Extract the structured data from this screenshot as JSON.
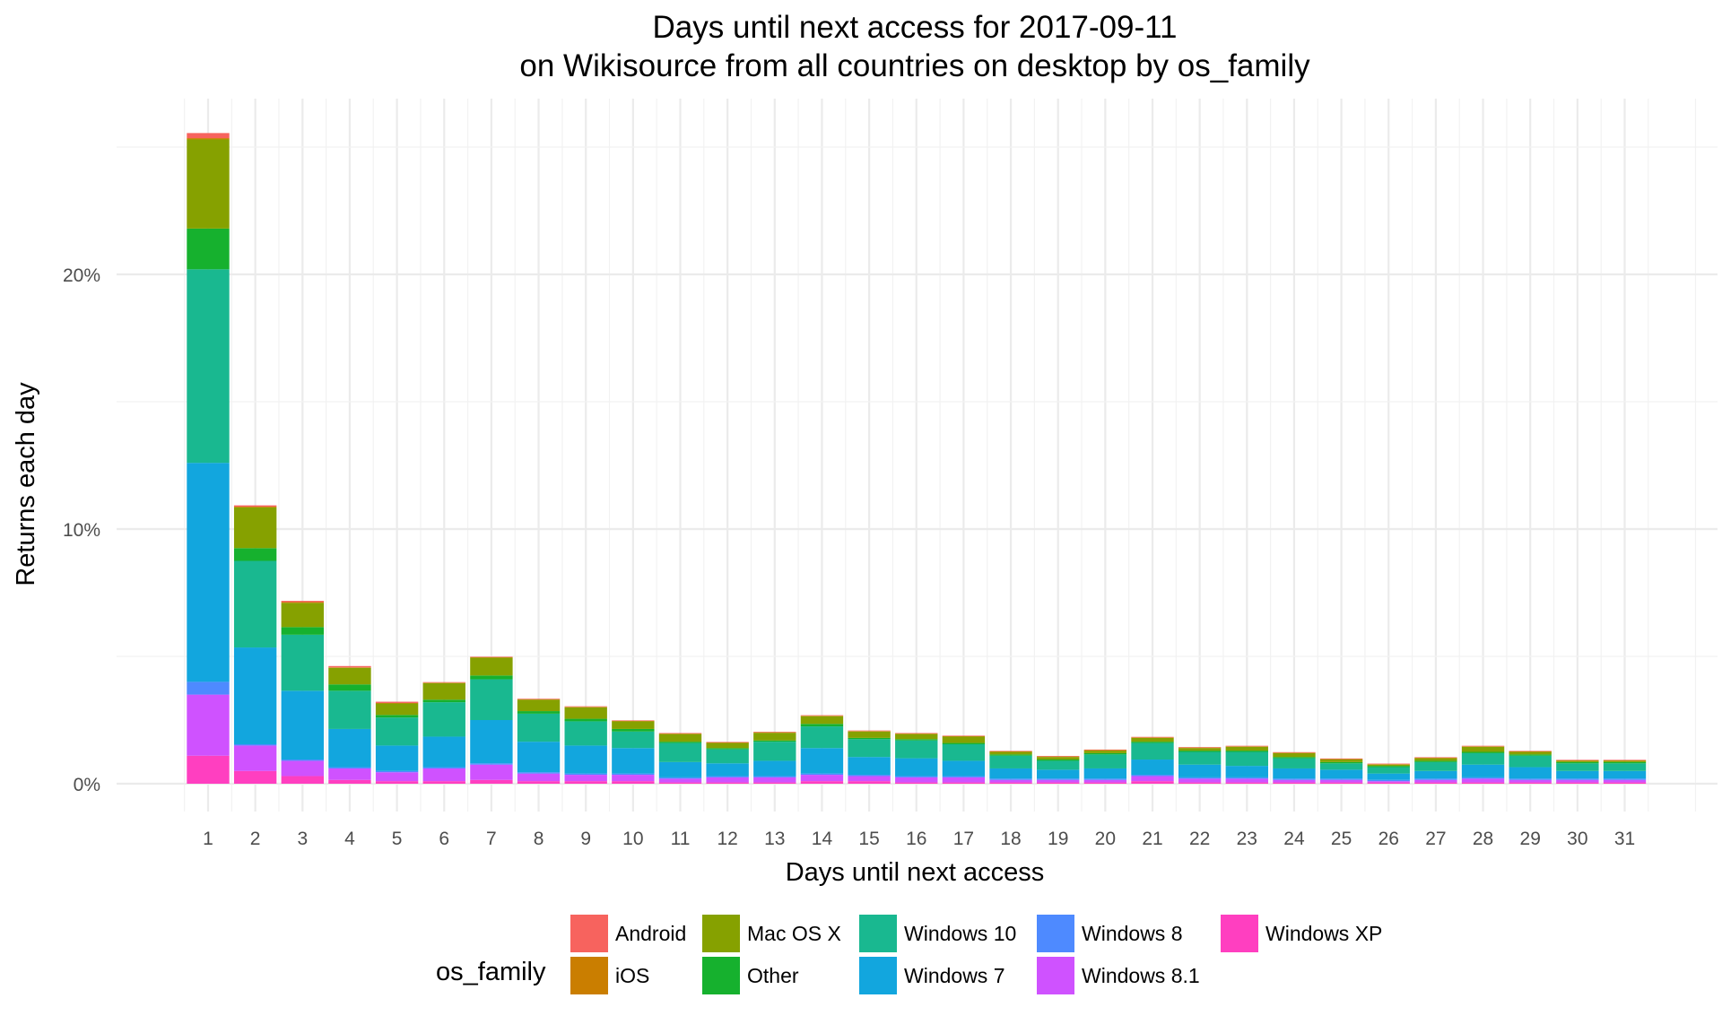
{
  "chart_data": {
    "type": "bar",
    "stacked": true,
    "title": "Days until next access for 2017-09-11",
    "subtitle": "on Wikisource from all countries on desktop by os_family",
    "xlabel": "Days until next access",
    "ylabel": "Returns each day",
    "ylim": [
      -1.2,
      26.5
    ],
    "yticks": [
      0,
      10,
      20
    ],
    "ytick_labels": [
      "0%",
      "10%",
      "20%"
    ],
    "grid": true,
    "legend": {
      "title": "os_family",
      "placement": "bottom"
    },
    "categories": [
      "1",
      "2",
      "3",
      "4",
      "5",
      "6",
      "7",
      "8",
      "9",
      "10",
      "11",
      "12",
      "13",
      "14",
      "15",
      "16",
      "17",
      "18",
      "19",
      "20",
      "21",
      "22",
      "23",
      "24",
      "25",
      "26",
      "27",
      "28",
      "29",
      "30",
      "31"
    ],
    "series": [
      {
        "name": "Windows XP",
        "color": "#FF3FC0",
        "values": [
          1.1,
          0.5,
          0.3,
          0.15,
          0.1,
          0.1,
          0.15,
          0.1,
          0.1,
          0.1,
          0.05,
          0.05,
          0.05,
          0.1,
          0.1,
          0.05,
          0.05,
          0.05,
          0.05,
          0.05,
          0.1,
          0.05,
          0.05,
          0.05,
          0.05,
          0.05,
          0.05,
          0.05,
          0.05,
          0.05,
          0.05
        ]
      },
      {
        "name": "Windows 8.1",
        "color": "#CF52FF",
        "values": [
          2.4,
          1.0,
          0.6,
          0.45,
          0.35,
          0.5,
          0.6,
          0.3,
          0.25,
          0.25,
          0.15,
          0.2,
          0.2,
          0.25,
          0.2,
          0.2,
          0.2,
          0.1,
          0.1,
          0.1,
          0.2,
          0.15,
          0.15,
          0.1,
          0.1,
          0.05,
          0.1,
          0.15,
          0.1,
          0.1,
          0.1
        ]
      },
      {
        "name": "Windows 8",
        "color": "#4E8AFF",
        "values": [
          0.5,
          0.05,
          0.05,
          0.05,
          0.05,
          0.05,
          0.05,
          0.05,
          0.05,
          0.05,
          0.05,
          0.05,
          0.05,
          0.05,
          0.05,
          0.05,
          0.05,
          0.05,
          0.05,
          0.05,
          0.05,
          0.05,
          0.05,
          0.05,
          0.05,
          0.05,
          0.05,
          0.05,
          0.05,
          0.05,
          0.05
        ]
      },
      {
        "name": "Windows 7",
        "color": "#12A6DE",
        "values": [
          8.6,
          3.8,
          2.7,
          1.5,
          1.0,
          1.2,
          1.7,
          1.2,
          1.1,
          1.0,
          0.6,
          0.5,
          0.6,
          1.0,
          0.7,
          0.7,
          0.6,
          0.4,
          0.35,
          0.4,
          0.6,
          0.5,
          0.45,
          0.4,
          0.35,
          0.25,
          0.3,
          0.5,
          0.45,
          0.3,
          0.3
        ]
      },
      {
        "name": "Windows 10",
        "color": "#19B890",
        "values": [
          7.6,
          3.4,
          2.2,
          1.5,
          1.1,
          1.35,
          1.6,
          1.1,
          0.95,
          0.65,
          0.75,
          0.55,
          0.75,
          0.85,
          0.7,
          0.7,
          0.65,
          0.5,
          0.35,
          0.55,
          0.65,
          0.5,
          0.55,
          0.4,
          0.25,
          0.25,
          0.35,
          0.45,
          0.45,
          0.3,
          0.3
        ]
      },
      {
        "name": "Other",
        "color": "#16B12E",
        "values": [
          1.6,
          0.5,
          0.3,
          0.25,
          0.1,
          0.1,
          0.15,
          0.1,
          0.1,
          0.1,
          0.05,
          0.05,
          0.05,
          0.1,
          0.05,
          0.05,
          0.05,
          0.05,
          0.05,
          0.05,
          0.05,
          0.05,
          0.05,
          0.05,
          0.05,
          0.05,
          0.05,
          0.05,
          0.05,
          0.05,
          0.05
        ]
      },
      {
        "name": "Mac OS X",
        "color": "#86A100",
        "values": [
          3.5,
          1.6,
          0.95,
          0.65,
          0.45,
          0.65,
          0.7,
          0.45,
          0.45,
          0.3,
          0.3,
          0.2,
          0.3,
          0.3,
          0.25,
          0.2,
          0.25,
          0.1,
          0.1,
          0.1,
          0.15,
          0.1,
          0.15,
          0.15,
          0.1,
          0.05,
          0.1,
          0.2,
          0.1,
          0.05,
          0.05
        ]
      },
      {
        "name": "iOS",
        "color": "#CA7E00",
        "values": [
          0.05,
          0.03,
          0.03,
          0.02,
          0.02,
          0.02,
          0.02,
          0.02,
          0.02,
          0.02,
          0.02,
          0.02,
          0.02,
          0.02,
          0.02,
          0.02,
          0.02,
          0.02,
          0.02,
          0.02,
          0.02,
          0.02,
          0.02,
          0.02,
          0.02,
          0.02,
          0.02,
          0.02,
          0.02,
          0.02,
          0.02
        ]
      },
      {
        "name": "Android",
        "color": "#F7635E",
        "values": [
          0.2,
          0.05,
          0.05,
          0.05,
          0.05,
          0.02,
          0.02,
          0.02,
          0.02,
          0.02,
          0.02,
          0.02,
          0.02,
          0.02,
          0.02,
          0.02,
          0.02,
          0.02,
          0.02,
          0.02,
          0.02,
          0.02,
          0.02,
          0.02,
          0.02,
          0.02,
          0.02,
          0.02,
          0.02,
          0.02,
          0.02
        ]
      }
    ],
    "legend_order": [
      "Android",
      "iOS",
      "Mac OS X",
      "Other",
      "Windows 10",
      "Windows 7",
      "Windows 8",
      "Windows 8.1",
      "Windows XP"
    ]
  }
}
